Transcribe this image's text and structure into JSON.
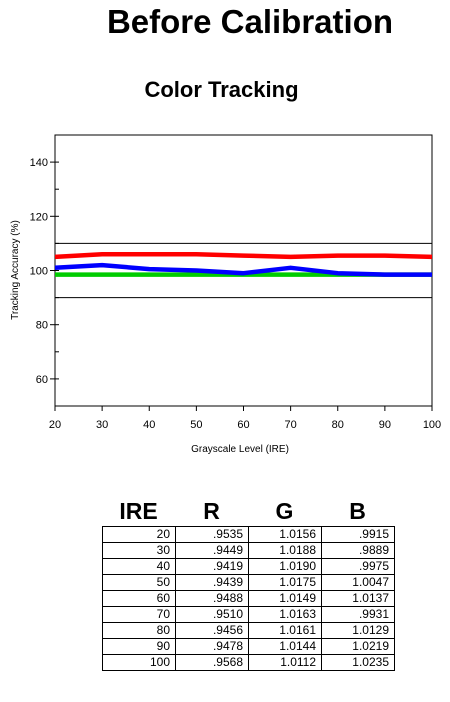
{
  "page": {
    "title": "Before Calibration"
  },
  "chart_data": {
    "type": "line",
    "title": "Color Tracking",
    "xlabel": "Grayscale Level (IRE)",
    "ylabel": "Tracking Accuracy (%)",
    "xlim": [
      20,
      100
    ],
    "ylim": [
      50,
      150
    ],
    "x_ticks": [
      20,
      30,
      40,
      50,
      60,
      70,
      80,
      90,
      100
    ],
    "y_ticks": [
      60,
      80,
      100,
      120,
      140
    ],
    "reference_lines": [
      110,
      90
    ],
    "x": [
      20,
      30,
      40,
      50,
      60,
      70,
      80,
      90,
      100
    ],
    "series": [
      {
        "color": "#ff0000",
        "values": [
          105,
          106,
          106,
          106,
          105.5,
          105,
          105.5,
          105.5,
          105
        ]
      },
      {
        "color": "#00cc00",
        "values": [
          98.5,
          98.5,
          98.5,
          98.5,
          98.5,
          98.5,
          98.5,
          98.5,
          98.5
        ]
      },
      {
        "color": "#0000ff",
        "values": [
          101,
          102,
          100.5,
          100,
          99,
          101,
          99,
          98.5,
          98.5
        ]
      }
    ],
    "grid": false
  },
  "table": {
    "headers": [
      "IRE",
      "R",
      "G",
      "B"
    ],
    "rows": [
      [
        "20",
        ".9535",
        "1.0156",
        ".9915"
      ],
      [
        "30",
        ".9449",
        "1.0188",
        ".9889"
      ],
      [
        "40",
        ".9419",
        "1.0190",
        ".9975"
      ],
      [
        "50",
        ".9439",
        "1.0175",
        "1.0047"
      ],
      [
        "60",
        ".9488",
        "1.0149",
        "1.0137"
      ],
      [
        "70",
        ".9510",
        "1.0163",
        ".9931"
      ],
      [
        "80",
        ".9456",
        "1.0161",
        "1.0129"
      ],
      [
        "90",
        ".9478",
        "1.0144",
        "1.0219"
      ],
      [
        "100",
        ".9568",
        "1.0112",
        "1.0235"
      ]
    ]
  }
}
